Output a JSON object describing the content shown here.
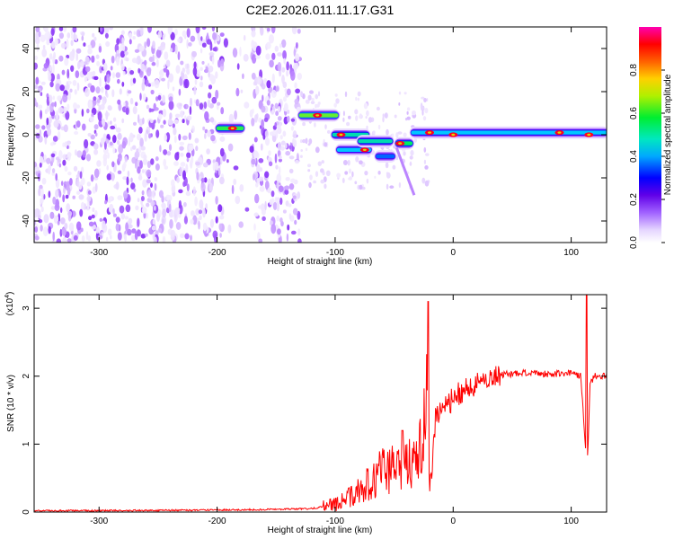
{
  "title": "C2E2.2026.011.11.17.G31",
  "chart_data": [
    {
      "type": "heatmap",
      "xlabel": "Height of straight line (km)",
      "ylabel": "Frequency (Hz)",
      "xlim": [
        -355,
        130
      ],
      "ylim": [
        -50,
        50
      ],
      "xticks": [
        -300,
        -200,
        -100,
        0,
        100
      ],
      "yticks": [
        -40,
        -20,
        0,
        20,
        40
      ],
      "colorbar_label": "Normalized spectral amplitude",
      "colorbar_range": [
        0.0,
        1.0
      ],
      "colorbar_ticks": [
        0.0,
        0.2,
        0.4,
        0.6,
        0.8
      ],
      "colormap": [
        "#ffffff",
        "#e8d8ff",
        "#b070ff",
        "#6600ee",
        "#0000ff",
        "#00c8ff",
        "#00ee60",
        "#c8f000",
        "#ff8800",
        "#ff0000",
        "#ff00a0"
      ],
      "noise_region_km": [
        -355,
        -130
      ],
      "signal_features": [
        {
          "x_start": -200,
          "x_end": -178,
          "freq": 3,
          "amp": 0.62
        },
        {
          "x_start": -130,
          "x_end": -98,
          "freq": 9,
          "amp": 0.65
        },
        {
          "x_start": -102,
          "x_end": -72,
          "freq": 0,
          "amp": 0.55
        },
        {
          "x_start": -98,
          "x_end": -70,
          "freq": -7,
          "amp": 0.5
        },
        {
          "x_start": -80,
          "x_end": -52,
          "freq": -3,
          "amp": 0.55
        },
        {
          "x_start": -65,
          "x_end": -50,
          "freq": -10,
          "amp": 0.45
        },
        {
          "x_start": -48,
          "x_end": -35,
          "freq": -4,
          "amp": 0.6
        },
        {
          "x_start": -35,
          "x_end": 130,
          "freq": 1,
          "amp": 0.5
        }
      ],
      "hot_spots": [
        {
          "x": -187,
          "freq": 3
        },
        {
          "x": -115,
          "freq": 9
        },
        {
          "x": -95,
          "freq": 0
        },
        {
          "x": -75,
          "freq": -7
        },
        {
          "x": -45,
          "freq": -4
        },
        {
          "x": -20,
          "freq": 1
        },
        {
          "x": 0,
          "freq": 0
        },
        {
          "x": 90,
          "freq": 1
        },
        {
          "x": 115,
          "freq": 0
        }
      ]
    },
    {
      "type": "line",
      "xlabel": "Height of straight line (km)",
      "ylabel": "SNR (10 * v/v)",
      "y_multiplier": "(x10",
      "y_multiplier_exp": "4",
      "y_multiplier_close": ")",
      "xlim": [
        -355,
        130
      ],
      "ylim": [
        0,
        3.2
      ],
      "xticks": [
        -300,
        -200,
        -100,
        0,
        100
      ],
      "yticks": [
        0,
        1,
        2,
        3
      ],
      "series": [
        {
          "name": "SNR",
          "color": "#ff0000",
          "x": [
            -355,
            -300,
            -200,
            -150,
            -120,
            -110,
            -100,
            -90,
            -80,
            -70,
            -60,
            -50,
            -40,
            -35,
            -30,
            -25,
            -22,
            -20,
            -18,
            -15,
            -10,
            -5,
            0,
            10,
            20,
            30,
            40,
            60,
            80,
            100,
            108,
            112,
            114,
            116,
            120,
            130
          ],
          "values": [
            0.02,
            0.02,
            0.03,
            0.04,
            0.05,
            0.08,
            0.12,
            0.2,
            0.3,
            0.45,
            0.6,
            0.65,
            0.7,
            0.75,
            0.9,
            1.2,
            1.6,
            0.3,
            0.5,
            1.4,
            1.5,
            1.55,
            1.7,
            1.8,
            1.9,
            1.97,
            2.02,
            2.05,
            2.03,
            2.05,
            2.0,
            1.0,
            0.85,
            1.9,
            2.0,
            2.0
          ]
        }
      ],
      "spikes": [
        {
          "x": -43,
          "value": 1.2
        },
        {
          "x": -21,
          "value": 3.1
        },
        {
          "x": 113,
          "value": 3.2
        }
      ]
    }
  ]
}
